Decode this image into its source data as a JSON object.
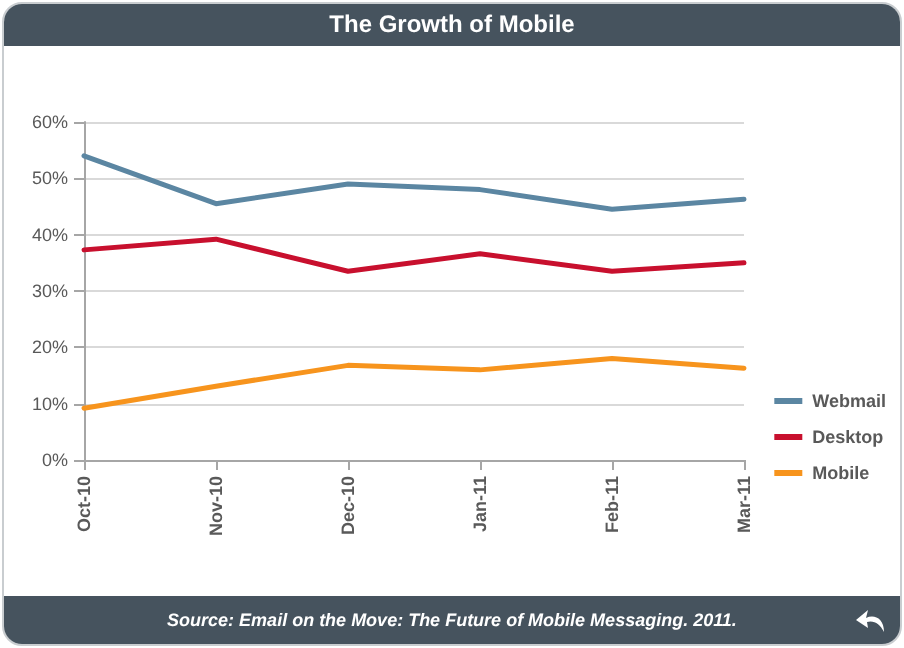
{
  "chart_data": {
    "type": "line",
    "title": "The Growth of Mobile",
    "annotations": [
      "Source: Email on the Move: The Future of Mobile Messaging. 2011."
    ],
    "categories": [
      "Oct-10",
      "Nov-10",
      "Dec-10",
      "Jan-11",
      "Feb-11",
      "Mar-11"
    ],
    "series": [
      {
        "name": "Webmail",
        "color": "#5b86a2",
        "values": [
          54,
          45.5,
          49,
          48,
          44.5,
          46.3
        ]
      },
      {
        "name": "Desktop",
        "color": "#c8102e",
        "values": [
          37.3,
          39.2,
          33.5,
          36.6,
          33.5,
          35
        ]
      },
      {
        "name": "Mobile",
        "color": "#f7941d",
        "values": [
          9.2,
          13.1,
          16.8,
          16,
          18,
          16.3
        ]
      }
    ],
    "ylim": [
      0,
      60
    ],
    "yticks": [
      {
        "value": 0,
        "label": "0%"
      },
      {
        "value": 10,
        "label": "10%"
      },
      {
        "value": 20,
        "label": "20%"
      },
      {
        "value": 30,
        "label": "30%"
      },
      {
        "value": 40,
        "label": "40%"
      },
      {
        "value": 50,
        "label": "50%"
      },
      {
        "value": 60,
        "label": "60%"
      }
    ],
    "grid": "y",
    "legend": "right",
    "marker": "none",
    "line_style": "solid"
  }
}
